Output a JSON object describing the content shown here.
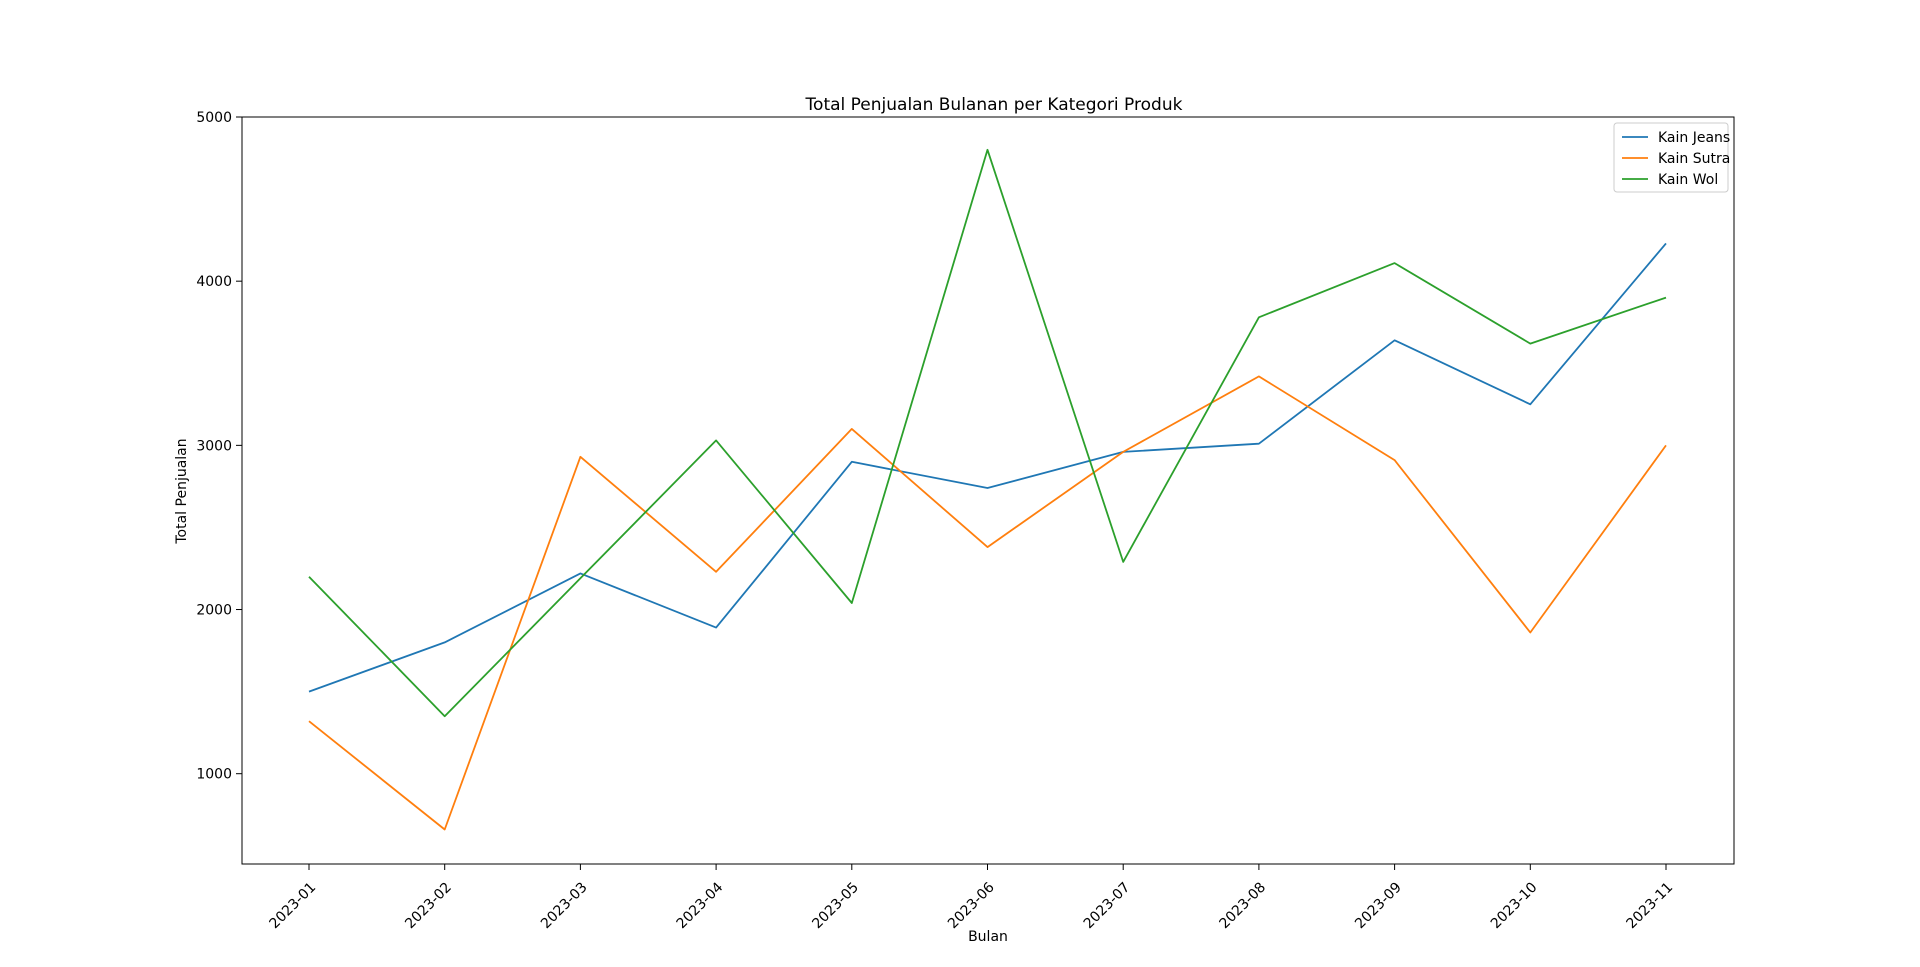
{
  "chart_data": {
    "type": "line",
    "title": "Total Penjualan Bulanan per Kategori Produk",
    "xlabel": "Bulan",
    "ylabel": "Total Penjualan",
    "categories": [
      "2023-01",
      "2023-02",
      "2023-03",
      "2023-04",
      "2023-05",
      "2023-06",
      "2023-07",
      "2023-08",
      "2023-09",
      "2023-10",
      "2023-11"
    ],
    "ylim": [
      450,
      5000
    ],
    "yticks": [
      1000,
      2000,
      3000,
      4000,
      5000
    ],
    "grid": false,
    "legend_position": "top-right",
    "series": [
      {
        "name": "Kain Jeans",
        "color": "#1f77b4",
        "values": [
          1500,
          1800,
          2220,
          1890,
          2900,
          2740,
          2960,
          3010,
          3640,
          3250,
          4230
        ]
      },
      {
        "name": "Kain Sutra",
        "color": "#ff7f0e",
        "values": [
          1320,
          660,
          2930,
          2230,
          3100,
          2380,
          2960,
          3420,
          2910,
          1860,
          3000
        ]
      },
      {
        "name": "Kain Wol",
        "color": "#2ca02c",
        "values": [
          2200,
          1350,
          2190,
          3030,
          2040,
          4800,
          2290,
          3780,
          4110,
          3620,
          3900
        ]
      }
    ]
  }
}
